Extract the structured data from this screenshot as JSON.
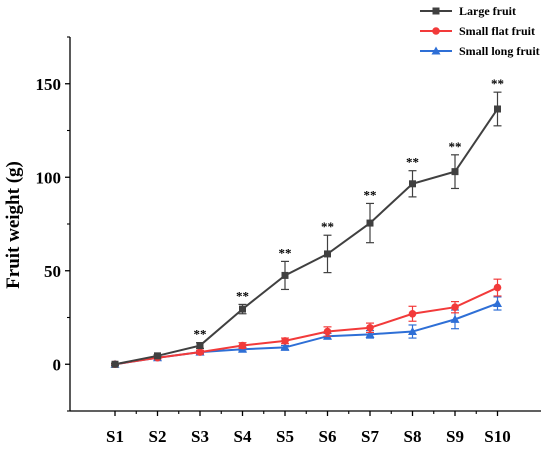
{
  "chart_data": {
    "type": "line",
    "title": "",
    "xlabel": "",
    "ylabel": "Fruit weight (g)",
    "categories": [
      "S1",
      "S2",
      "S3",
      "S4",
      "S5",
      "S6",
      "S7",
      "S8",
      "S9",
      "S10"
    ],
    "y_ticks": [
      0,
      50,
      100,
      150
    ],
    "ylim": [
      -25,
      175
    ],
    "grid": false,
    "legend_position": "top-right",
    "series": [
      {
        "name": "Large fruit",
        "color": "#404040",
        "marker": "square",
        "values": [
          0,
          4.5,
          10,
          29.5,
          47.5,
          59,
          75.5,
          96.5,
          103,
          136.5
        ],
        "errors": [
          0.5,
          0.5,
          1.5,
          2.5,
          7.5,
          10,
          10.5,
          7,
          9,
          9
        ]
      },
      {
        "name": "Small flat fruit",
        "color": "#f23a3a",
        "marker": "circle",
        "values": [
          0,
          3.5,
          6.5,
          10,
          12.5,
          17.5,
          19.5,
          27,
          30.5,
          41
        ],
        "errors": [
          0.5,
          0.5,
          1,
          1.5,
          1.5,
          2.5,
          2.5,
          4,
          3,
          4.5
        ]
      },
      {
        "name": "Small long fruit",
        "color": "#2e6fd6",
        "marker": "triangle",
        "values": [
          0,
          3.5,
          6.5,
          8,
          9,
          15,
          16,
          17.5,
          24,
          32.5
        ],
        "errors": [
          0.5,
          0.5,
          0.5,
          1,
          1,
          1.5,
          2,
          3.5,
          5,
          3.5
        ]
      }
    ],
    "annotations": {
      "text": "**",
      "series": "Large fruit",
      "categories": [
        "S3",
        "S4",
        "S5",
        "S6",
        "S7",
        "S8",
        "S9",
        "S10"
      ]
    }
  }
}
